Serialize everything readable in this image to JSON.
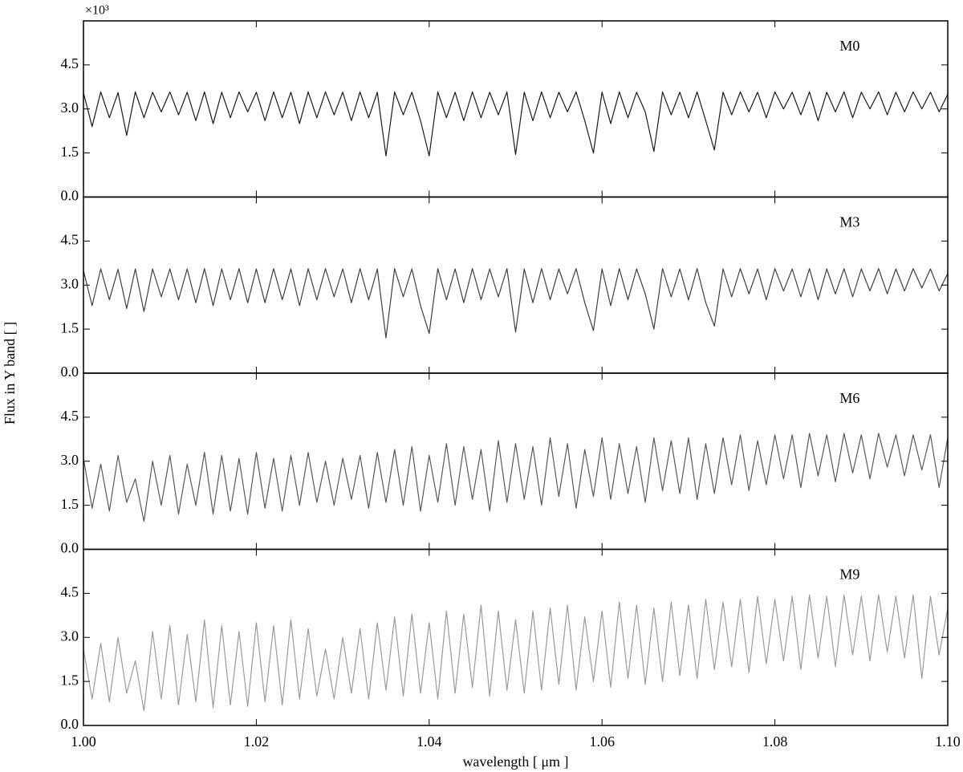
{
  "chart_data": [
    {
      "type": "line",
      "annotation": "M0",
      "offset_label": "×10³",
      "ylabel": "Flux in Y band [ ]",
      "xlim": [
        1.0,
        1.1
      ],
      "xticks": [
        1.0,
        1.02,
        1.04,
        1.06,
        1.08,
        1.1
      ],
      "ylim": [
        0,
        6
      ],
      "yticks": [
        {
          "value": 0,
          "label": "0.0"
        },
        1.5,
        {
          "value": 3,
          "label": "3.0"
        },
        4.5
      ],
      "series": [
        {
          "name": "M0",
          "color": "#1a1a1a",
          "x": [
            1,
            1.001,
            1.002,
            1.003,
            1.004,
            1.005,
            1.006,
            1.007,
            1.008,
            1.009,
            1.01,
            1.011,
            1.012,
            1.013,
            1.014,
            1.015,
            1.016,
            1.017,
            1.018,
            1.019,
            1.02,
            1.021,
            1.022,
            1.023,
            1.024,
            1.025,
            1.026,
            1.027,
            1.028,
            1.029,
            1.03,
            1.031,
            1.032,
            1.033,
            1.034,
            1.035,
            1.036,
            1.037,
            1.038,
            1.039,
            1.04,
            1.041,
            1.042,
            1.043,
            1.044,
            1.045,
            1.046,
            1.047,
            1.048,
            1.049,
            1.05,
            1.051,
            1.052,
            1.053,
            1.054,
            1.055,
            1.056,
            1.057,
            1.058,
            1.059,
            1.06,
            1.061,
            1.062,
            1.063,
            1.064,
            1.065,
            1.066,
            1.067,
            1.068,
            1.069,
            1.07,
            1.071,
            1.072,
            1.073,
            1.074,
            1.075,
            1.076,
            1.077,
            1.078,
            1.079,
            1.08,
            1.081,
            1.082,
            1.083,
            1.084,
            1.085,
            1.086,
            1.087,
            1.088,
            1.089,
            1.09,
            1.091,
            1.092,
            1.093,
            1.094,
            1.095,
            1.096,
            1.097,
            1.098,
            1.099,
            1.1
          ],
          "values": [
            3.55,
            2.4,
            3.58,
            2.7,
            3.56,
            2.1,
            3.58,
            2.7,
            3.57,
            2.9,
            3.58,
            2.8,
            3.57,
            2.6,
            3.58,
            2.5,
            3.57,
            2.7,
            3.58,
            2.9,
            3.57,
            2.6,
            3.58,
            2.7,
            3.57,
            2.5,
            3.58,
            2.7,
            3.58,
            2.8,
            3.57,
            2.6,
            3.58,
            2.7,
            3.57,
            1.4,
            3.58,
            2.8,
            3.57,
            2.6,
            1.4,
            3.58,
            2.7,
            3.57,
            2.6,
            3.58,
            2.7,
            3.57,
            2.8,
            3.58,
            1.45,
            3.57,
            2.6,
            3.58,
            2.7,
            3.57,
            2.9,
            3.58,
            2.6,
            1.5,
            3.57,
            2.5,
            3.58,
            2.7,
            3.57,
            2.9,
            1.55,
            3.58,
            2.8,
            3.57,
            2.7,
            3.58,
            2.6,
            1.6,
            3.57,
            2.8,
            3.58,
            2.9,
            3.57,
            2.7,
            3.58,
            3.0,
            3.57,
            2.8,
            3.58,
            2.6,
            3.57,
            2.9,
            3.58,
            2.7,
            3.57,
            3.0,
            3.58,
            2.8,
            3.57,
            2.9,
            3.58,
            3.0,
            3.57,
            2.9,
            3.5
          ]
        }
      ]
    },
    {
      "type": "line",
      "annotation": "M3",
      "xlim": [
        1.0,
        1.1
      ],
      "xticks": [
        1.0,
        1.02,
        1.04,
        1.06,
        1.08,
        1.1
      ],
      "ylim": [
        0,
        6
      ],
      "yticks": [
        {
          "value": 0,
          "label": "0.0"
        },
        1.5,
        {
          "value": 3,
          "label": "3.0"
        },
        4.5
      ],
      "series": [
        {
          "name": "M3",
          "color": "#3f3f3f",
          "x": [
            1,
            1.001,
            1.002,
            1.003,
            1.004,
            1.005,
            1.006,
            1.007,
            1.008,
            1.009,
            1.01,
            1.011,
            1.012,
            1.013,
            1.014,
            1.015,
            1.016,
            1.017,
            1.018,
            1.019,
            1.02,
            1.021,
            1.022,
            1.023,
            1.024,
            1.025,
            1.026,
            1.027,
            1.028,
            1.029,
            1.03,
            1.031,
            1.032,
            1.033,
            1.034,
            1.035,
            1.036,
            1.037,
            1.038,
            1.039,
            1.04,
            1.041,
            1.042,
            1.043,
            1.044,
            1.045,
            1.046,
            1.047,
            1.048,
            1.049,
            1.05,
            1.051,
            1.052,
            1.053,
            1.054,
            1.055,
            1.056,
            1.057,
            1.058,
            1.059,
            1.06,
            1.061,
            1.062,
            1.063,
            1.064,
            1.065,
            1.066,
            1.067,
            1.068,
            1.069,
            1.07,
            1.071,
            1.072,
            1.073,
            1.074,
            1.075,
            1.076,
            1.077,
            1.078,
            1.079,
            1.08,
            1.081,
            1.082,
            1.083,
            1.084,
            1.085,
            1.086,
            1.087,
            1.088,
            1.089,
            1.09,
            1.091,
            1.092,
            1.093,
            1.094,
            1.095,
            1.096,
            1.097,
            1.098,
            1.099,
            1.1
          ],
          "values": [
            3.5,
            2.3,
            3.55,
            2.5,
            3.54,
            2.2,
            3.55,
            2.1,
            3.55,
            2.6,
            3.55,
            2.5,
            3.55,
            2.4,
            3.56,
            2.3,
            3.55,
            2.5,
            3.56,
            2.4,
            3.55,
            2.4,
            3.56,
            2.5,
            3.55,
            2.3,
            3.56,
            2.5,
            3.56,
            2.6,
            3.55,
            2.4,
            3.56,
            2.5,
            3.55,
            1.2,
            3.56,
            2.6,
            3.55,
            2.3,
            1.35,
            3.56,
            2.5,
            3.55,
            2.4,
            3.56,
            2.5,
            3.55,
            2.6,
            3.56,
            1.4,
            3.55,
            2.4,
            3.56,
            2.5,
            3.55,
            2.7,
            3.56,
            2.4,
            1.45,
            3.55,
            2.3,
            3.56,
            2.5,
            3.55,
            2.7,
            1.5,
            3.56,
            2.6,
            3.55,
            2.5,
            3.56,
            2.4,
            1.6,
            3.55,
            2.6,
            3.56,
            2.7,
            3.55,
            2.5,
            3.56,
            2.8,
            3.55,
            2.6,
            3.56,
            2.5,
            3.55,
            2.7,
            3.56,
            2.6,
            3.55,
            2.8,
            3.56,
            2.7,
            3.55,
            2.8,
            3.56,
            2.9,
            3.55,
            2.8,
            3.4
          ]
        }
      ]
    },
    {
      "type": "line",
      "annotation": "M6",
      "xlim": [
        1.0,
        1.1
      ],
      "xticks": [
        1.0,
        1.02,
        1.04,
        1.06,
        1.08,
        1.1
      ],
      "ylim": [
        0,
        6
      ],
      "yticks": [
        {
          "value": 0,
          "label": "0.0"
        },
        1.5,
        {
          "value": 3,
          "label": "3.0"
        },
        4.5
      ],
      "series": [
        {
          "name": "M6",
          "color": "#585858",
          "x": [
            1,
            1.001,
            1.002,
            1.003,
            1.004,
            1.005,
            1.006,
            1.007,
            1.008,
            1.009,
            1.01,
            1.011,
            1.012,
            1.013,
            1.014,
            1.015,
            1.016,
            1.017,
            1.018,
            1.019,
            1.02,
            1.021,
            1.022,
            1.023,
            1.024,
            1.025,
            1.026,
            1.027,
            1.028,
            1.029,
            1.03,
            1.031,
            1.032,
            1.033,
            1.034,
            1.035,
            1.036,
            1.037,
            1.038,
            1.039,
            1.04,
            1.041,
            1.042,
            1.043,
            1.044,
            1.045,
            1.046,
            1.047,
            1.048,
            1.049,
            1.05,
            1.051,
            1.052,
            1.053,
            1.054,
            1.055,
            1.056,
            1.057,
            1.058,
            1.059,
            1.06,
            1.061,
            1.062,
            1.063,
            1.064,
            1.065,
            1.066,
            1.067,
            1.068,
            1.069,
            1.07,
            1.071,
            1.072,
            1.073,
            1.074,
            1.075,
            1.076,
            1.077,
            1.078,
            1.079,
            1.08,
            1.081,
            1.082,
            1.083,
            1.084,
            1.085,
            1.086,
            1.087,
            1.088,
            1.089,
            1.09,
            1.091,
            1.092,
            1.093,
            1.094,
            1.095,
            1.096,
            1.097,
            1.098,
            1.099,
            1.1
          ],
          "values": [
            3.1,
            1.4,
            2.9,
            1.3,
            3.2,
            1.6,
            2.4,
            0.95,
            3.0,
            1.5,
            3.2,
            1.2,
            2.9,
            1.5,
            3.3,
            1.2,
            3.2,
            1.3,
            3.1,
            1.2,
            3.3,
            1.4,
            3.1,
            1.3,
            3.2,
            1.5,
            3.3,
            1.6,
            3.0,
            1.5,
            3.1,
            1.7,
            3.2,
            1.4,
            3.3,
            1.6,
            3.4,
            1.5,
            3.5,
            1.3,
            3.2,
            1.6,
            3.6,
            1.5,
            3.5,
            1.7,
            3.4,
            1.3,
            3.7,
            1.6,
            3.6,
            1.7,
            3.5,
            1.5,
            3.8,
            1.8,
            3.6,
            1.4,
            3.4,
            1.8,
            3.8,
            1.7,
            3.6,
            1.9,
            3.5,
            1.6,
            3.8,
            2.0,
            3.7,
            1.9,
            3.8,
            1.7,
            3.6,
            1.9,
            3.8,
            2.2,
            3.9,
            2.0,
            3.7,
            2.2,
            3.9,
            2.4,
            3.9,
            2.1,
            3.95,
            2.5,
            3.9,
            2.3,
            3.95,
            2.6,
            3.9,
            2.4,
            3.95,
            2.8,
            3.9,
            2.5,
            3.9,
            2.7,
            3.9,
            2.1,
            3.8
          ]
        }
      ]
    },
    {
      "type": "line",
      "annotation": "M9",
      "xlabel": "wavelength [ μm ]",
      "xlim": [
        1.0,
        1.1
      ],
      "xticks": [
        {
          "value": 1.0,
          "label": "1.00"
        },
        {
          "value": 1.02,
          "label": "1.02"
        },
        {
          "value": 1.04,
          "label": "1.04"
        },
        {
          "value": 1.06,
          "label": "1.06"
        },
        {
          "value": 1.08,
          "label": "1.08"
        },
        {
          "value": 1.1,
          "label": "1.10"
        }
      ],
      "ylim": [
        0,
        6
      ],
      "yticks": [
        {
          "value": 0,
          "label": "0.0"
        },
        1.5,
        {
          "value": 3,
          "label": "3.0"
        },
        4.5
      ],
      "series": [
        {
          "name": "M9",
          "color": "#9a9a9a",
          "x": [
            1,
            1.001,
            1.002,
            1.003,
            1.004,
            1.005,
            1.006,
            1.007,
            1.008,
            1.009,
            1.01,
            1.011,
            1.012,
            1.013,
            1.014,
            1.015,
            1.016,
            1.017,
            1.018,
            1.019,
            1.02,
            1.021,
            1.022,
            1.023,
            1.024,
            1.025,
            1.026,
            1.027,
            1.028,
            1.029,
            1.03,
            1.031,
            1.032,
            1.033,
            1.034,
            1.035,
            1.036,
            1.037,
            1.038,
            1.039,
            1.04,
            1.041,
            1.042,
            1.043,
            1.044,
            1.045,
            1.046,
            1.047,
            1.048,
            1.049,
            1.05,
            1.051,
            1.052,
            1.053,
            1.054,
            1.055,
            1.056,
            1.057,
            1.058,
            1.059,
            1.06,
            1.061,
            1.062,
            1.063,
            1.064,
            1.065,
            1.066,
            1.067,
            1.068,
            1.069,
            1.07,
            1.071,
            1.072,
            1.073,
            1.074,
            1.075,
            1.076,
            1.077,
            1.078,
            1.079,
            1.08,
            1.081,
            1.082,
            1.083,
            1.084,
            1.085,
            1.086,
            1.087,
            1.088,
            1.089,
            1.09,
            1.091,
            1.092,
            1.093,
            1.094,
            1.095,
            1.096,
            1.097,
            1.098,
            1.099,
            1.1
          ],
          "values": [
            2.6,
            0.9,
            2.8,
            0.8,
            3.0,
            1.1,
            2.2,
            0.5,
            3.2,
            0.9,
            3.4,
            0.7,
            3.1,
            0.8,
            3.6,
            0.6,
            3.4,
            0.7,
            3.2,
            0.65,
            3.5,
            0.8,
            3.4,
            0.7,
            3.6,
            0.9,
            3.3,
            1.0,
            2.6,
            0.9,
            3.0,
            1.1,
            3.3,
            0.9,
            3.5,
            1.2,
            3.7,
            1.0,
            3.8,
            1.1,
            3.5,
            0.9,
            3.9,
            1.1,
            3.8,
            1.3,
            4.1,
            1.0,
            3.9,
            1.2,
            3.6,
            1.1,
            3.9,
            1.2,
            4.0,
            1.4,
            4.1,
            1.2,
            3.7,
            1.5,
            3.9,
            1.3,
            4.2,
            1.6,
            4.1,
            1.4,
            4.0,
            1.5,
            4.2,
            1.7,
            4.1,
            1.6,
            4.3,
            1.9,
            4.2,
            2.0,
            4.3,
            1.8,
            4.4,
            2.1,
            4.3,
            2.2,
            4.4,
            1.9,
            4.45,
            2.3,
            4.4,
            2.0,
            4.45,
            2.4,
            4.4,
            2.2,
            4.45,
            2.5,
            4.4,
            2.3,
            4.45,
            1.6,
            4.4,
            2.4,
            4.0
          ]
        }
      ]
    }
  ]
}
